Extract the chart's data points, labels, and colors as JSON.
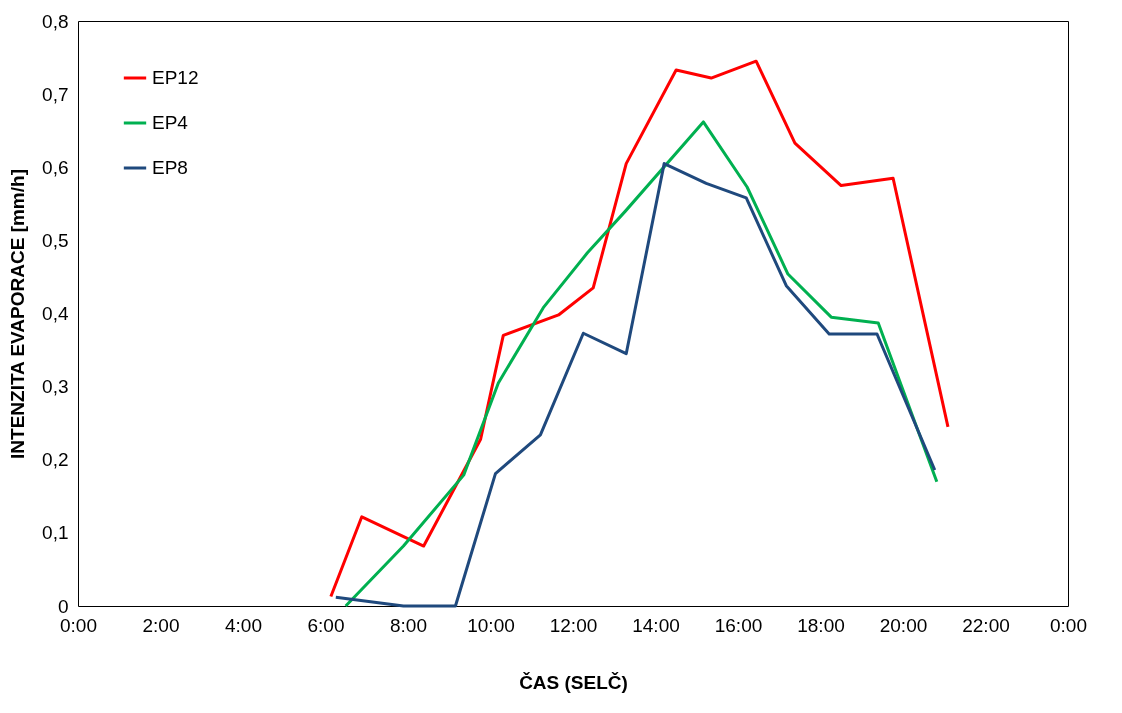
{
  "chart_data": {
    "type": "line",
    "xlabel": "ČAS (SELČ)",
    "ylabel": "INTENZITA EVAPORACE [mm/h]",
    "xlim": [
      0,
      24
    ],
    "xticks": [
      {
        "value": 0,
        "label": "0:00"
      },
      {
        "value": 2,
        "label": "2:00"
      },
      {
        "value": 4,
        "label": "4:00"
      },
      {
        "value": 6,
        "label": "6:00"
      },
      {
        "value": 8,
        "label": "8:00"
      },
      {
        "value": 10,
        "label": "10:00"
      },
      {
        "value": 12,
        "label": "12:00"
      },
      {
        "value": 14,
        "label": "14:00"
      },
      {
        "value": 16,
        "label": "16:00"
      },
      {
        "value": 18,
        "label": "18:00"
      },
      {
        "value": 20,
        "label": "20:00"
      },
      {
        "value": 22,
        "label": "22:00"
      },
      {
        "value": 24,
        "label": "0:00"
      }
    ],
    "ylim": [
      0,
      0.8
    ],
    "yticks": [
      0,
      {
        "value": 0.1,
        "label": "0,1"
      },
      {
        "value": 0.2,
        "label": "0,2"
      },
      {
        "value": 0.3,
        "label": "0,3"
      },
      {
        "value": 0.4,
        "label": "0,4"
      },
      {
        "value": 0.5,
        "label": "0,5"
      },
      {
        "value": 0.6,
        "label": "0,6"
      },
      {
        "value": 0.7,
        "label": "0,7"
      },
      {
        "value": 0.8,
        "label": "0,8"
      }
    ],
    "grid": false,
    "legend": "top left",
    "marker": "none",
    "line_style": "solid",
    "series": [
      {
        "name": "EP12",
        "color": "#ff0000",
        "x": [
          6.13,
          6.88,
          8.38,
          9.76,
          10.31,
          11.65,
          12.49,
          13.29,
          14.5,
          15.35,
          16.44,
          17.38,
          18.5,
          19.76,
          21.09
        ],
        "values": [
          0.013,
          0.122,
          0.082,
          0.228,
          0.37,
          0.398,
          0.435,
          0.605,
          0.733,
          0.722,
          0.745,
          0.633,
          0.575,
          0.585,
          0.245
        ]
      },
      {
        "name": "EP4",
        "color": "#00b050",
        "x": [
          6.49,
          7.89,
          9.35,
          10.19,
          11.28,
          12.35,
          13.27,
          15.16,
          16.22,
          17.21,
          18.26,
          19.4,
          20.82
        ],
        "values": [
          0,
          0.082,
          0.179,
          0.305,
          0.408,
          0.483,
          0.54,
          0.662,
          0.573,
          0.454,
          0.395,
          0.387,
          0.17
        ]
      },
      {
        "name": "EP8",
        "color": "#1f497d",
        "x": [
          6.25,
          7.89,
          9.15,
          10.12,
          11.21,
          12.25,
          13.29,
          14.21,
          15.23,
          16.2,
          17.17,
          18.21,
          19.37,
          20.77
        ],
        "values": [
          0.012,
          0,
          0,
          0.181,
          0.234,
          0.373,
          0.345,
          0.605,
          0.578,
          0.558,
          0.438,
          0.372,
          0.372,
          0.186
        ]
      }
    ]
  }
}
